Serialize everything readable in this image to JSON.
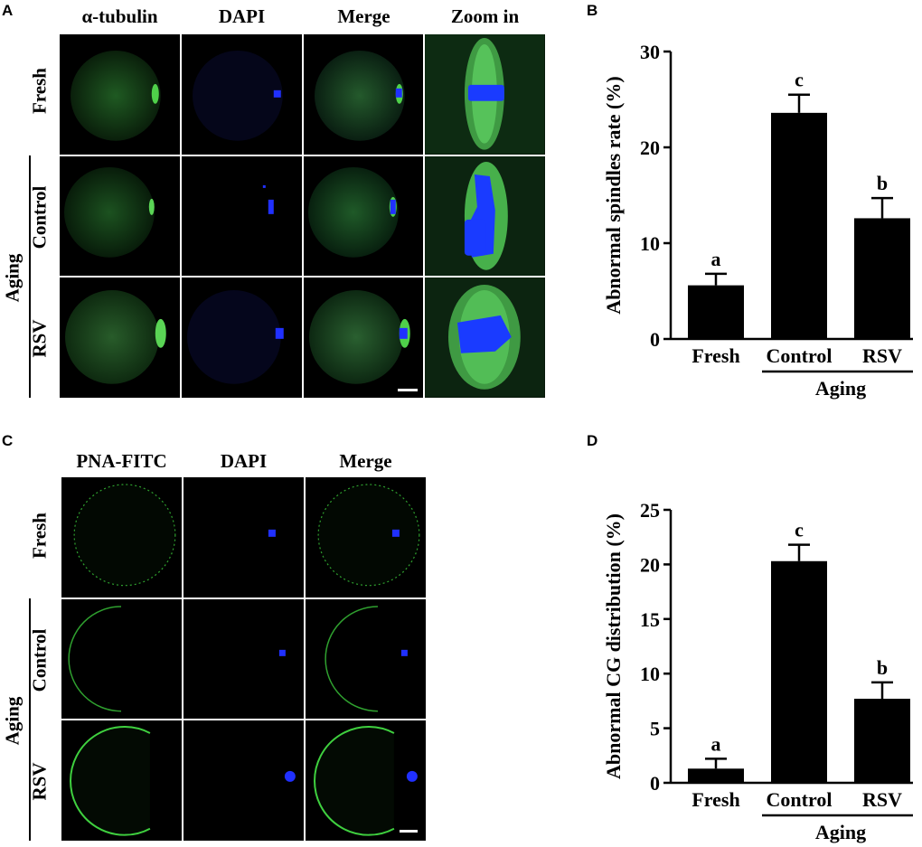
{
  "panelA": {
    "letter": "A",
    "columns": [
      "α-tubulin",
      "DAPI",
      "Merge",
      "Zoom in"
    ],
    "rows": [
      "Fresh",
      "Control",
      "RSV"
    ],
    "group_label": "Aging"
  },
  "panelC": {
    "letter": "C",
    "columns": [
      "PNA-FITC",
      "DAPI",
      "Merge"
    ],
    "rows": [
      "Fresh",
      "Control",
      "RSV"
    ],
    "group_label": "Aging"
  },
  "chart_data": [
    {
      "panel": "B",
      "type": "bar",
      "categories": [
        "Fresh",
        "Control",
        "RSV"
      ],
      "values": [
        5.6,
        23.6,
        12.6
      ],
      "errors": [
        1.2,
        1.9,
        2.1
      ],
      "significance": [
        "a",
        "c",
        "b"
      ],
      "ylabel": "Abnormal spindles rate (%)",
      "yticks": [
        0,
        10,
        20,
        30
      ],
      "ylim": [
        0,
        30
      ],
      "group_label": "Aging",
      "group_members": [
        "Control",
        "RSV"
      ],
      "grid": false,
      "bar_color": "#000000"
    },
    {
      "panel": "D",
      "type": "bar",
      "categories": [
        "Fresh",
        "Control",
        "RSV"
      ],
      "values": [
        1.3,
        20.3,
        7.7
      ],
      "errors": [
        0.9,
        1.5,
        1.5
      ],
      "significance": [
        "a",
        "c",
        "b"
      ],
      "ylabel": "Abnormal CG distribution (%)",
      "yticks": [
        0,
        5,
        10,
        15,
        20,
        25
      ],
      "ylim": [
        0,
        25
      ],
      "group_label": "Aging",
      "group_members": [
        "Control",
        "RSV"
      ],
      "grid": false,
      "bar_color": "#000000"
    }
  ]
}
